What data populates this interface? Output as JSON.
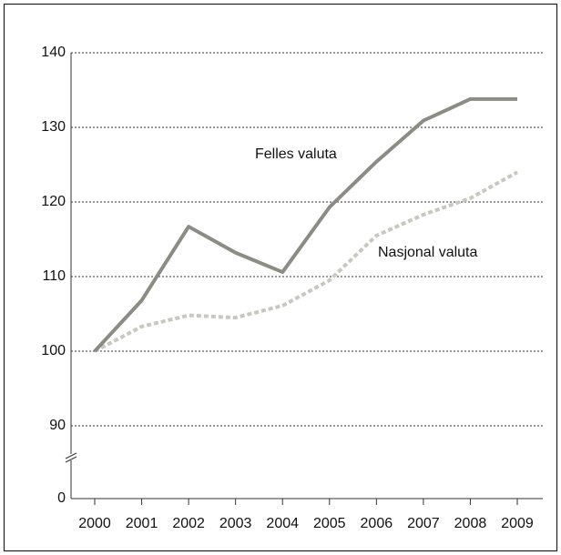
{
  "chart_data": {
    "type": "line",
    "x": [
      "2000",
      "2001",
      "2002",
      "2003",
      "2004",
      "2005",
      "2006",
      "2007",
      "2008",
      "2009"
    ],
    "series": [
      {
        "name": "Felles valuta",
        "color": "#8c8c84",
        "dashed": false,
        "values": [
          100,
          106.8,
          116.7,
          113.2,
          110.6,
          119.3,
          125.4,
          130.9,
          133.8,
          133.8
        ]
      },
      {
        "name": "Nasjonal valuta",
        "color": "#c8c8c0",
        "dashed": true,
        "values": [
          100,
          103.3,
          104.8,
          104.5,
          106.1,
          109.5,
          115.5,
          118.3,
          120.5,
          124.0
        ]
      }
    ],
    "ylim": [
      0,
      140
    ],
    "axis_break": [
      0,
      90
    ],
    "yticks": [
      0,
      90,
      100,
      110,
      120,
      130,
      140
    ],
    "grid": true
  }
}
